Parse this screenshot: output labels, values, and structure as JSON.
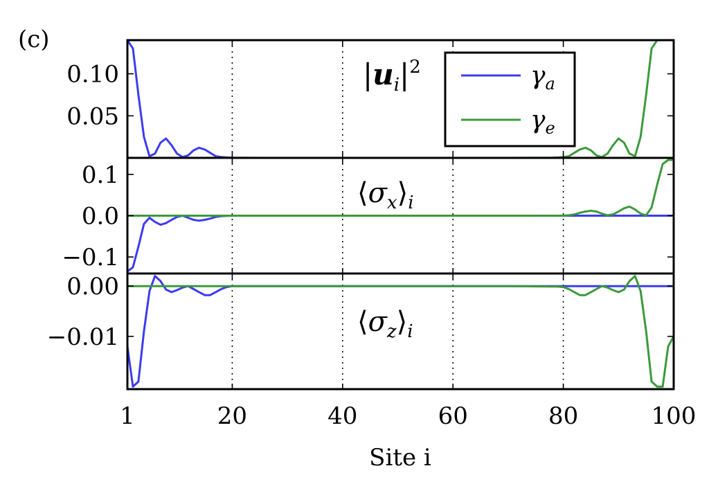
{
  "figure_label": "(c)",
  "colors": {
    "series_a": "#3b3bf0",
    "series_e": "#3a9a3a",
    "grid": "#000000",
    "frame": "#000000"
  },
  "legend": {
    "entries": [
      {
        "symbol": "γ",
        "subscript": "a",
        "color": "#3b3bf0"
      },
      {
        "symbol": "γ",
        "subscript": "e",
        "color": "#3a9a3a"
      }
    ],
    "location": "top-right of top panel"
  },
  "chart_data": [
    {
      "type": "line",
      "panel_label": "|ui|²",
      "x": [
        1,
        2,
        3,
        4,
        5,
        6,
        7,
        8,
        9,
        10,
        11,
        12,
        13,
        14,
        15,
        16,
        17,
        18,
        19,
        20,
        22,
        25,
        30,
        40,
        50,
        60,
        70,
        78,
        79,
        80,
        81,
        82,
        83,
        84,
        85,
        86,
        87,
        88,
        89,
        90,
        91,
        92,
        93,
        94,
        95,
        96,
        97,
        98,
        99,
        100
      ],
      "series": [
        {
          "legend_index": 0,
          "values": [
            0.14,
            0.13,
            0.075,
            0.025,
            0.002,
            0.005,
            0.018,
            0.023,
            0.015,
            0.005,
            0.001,
            0.003,
            0.009,
            0.012,
            0.01,
            0.006,
            0.002,
            0.001,
            0.0005,
            0.0002,
            0.0001,
            0,
            0,
            0,
            0,
            0,
            0,
            0,
            0,
            0,
            0,
            0,
            0,
            0,
            0,
            0,
            0,
            0,
            0,
            0,
            0,
            0,
            0,
            0,
            0,
            0,
            0,
            0,
            0,
            0
          ]
        },
        {
          "legend_index": 1,
          "values": [
            0,
            0,
            0,
            0,
            0,
            0,
            0,
            0,
            0,
            0,
            0,
            0,
            0,
            0,
            0,
            0,
            0,
            0,
            0,
            0,
            0,
            0,
            0,
            0,
            0,
            0,
            0,
            0.0002,
            0.0005,
            0.001,
            0.002,
            0.006,
            0.01,
            0.012,
            0.009,
            0.003,
            0.001,
            0.005,
            0.015,
            0.023,
            0.018,
            0.005,
            0.002,
            0.025,
            0.075,
            0.13,
            0.14,
            0.14,
            0.14,
            0.14
          ]
        }
      ],
      "ylim": [
        0,
        0.14
      ],
      "yticks": [
        0.05,
        0.1
      ],
      "ytick_labels": [
        "0.05",
        "0.10"
      ]
    },
    {
      "type": "line",
      "panel_label": "⟨σx⟩i",
      "x": [
        1,
        2,
        3,
        4,
        5,
        6,
        7,
        8,
        9,
        10,
        11,
        12,
        13,
        14,
        15,
        16,
        17,
        18,
        19,
        20,
        25,
        30,
        40,
        50,
        60,
        70,
        80,
        81,
        82,
        83,
        84,
        85,
        86,
        87,
        88,
        89,
        90,
        91,
        92,
        93,
        94,
        95,
        96,
        97,
        98,
        99,
        100
      ],
      "series": [
        {
          "legend_index": 0,
          "values": [
            -0.135,
            -0.125,
            -0.075,
            -0.02,
            -0.005,
            -0.015,
            -0.022,
            -0.018,
            -0.01,
            -0.003,
            0.0,
            -0.005,
            -0.01,
            -0.012,
            -0.01,
            -0.007,
            -0.003,
            -0.001,
            -0.0003,
            0,
            0,
            0,
            0,
            0,
            0,
            0,
            0,
            0,
            0,
            0,
            0,
            0,
            0,
            0,
            0,
            0,
            0,
            0,
            0,
            0,
            0,
            0,
            0,
            0,
            0,
            0,
            0
          ]
        },
        {
          "legend_index": 1,
          "values": [
            0,
            0,
            0,
            0,
            0,
            0,
            0,
            0,
            0,
            0,
            0,
            0,
            0,
            0,
            0,
            0,
            0,
            0,
            0,
            0,
            0,
            0,
            0,
            0,
            0,
            0,
            0.0002,
            0.001,
            0.003,
            0.007,
            0.01,
            0.012,
            0.01,
            0.005,
            0.001,
            0.003,
            0.01,
            0.018,
            0.022,
            0.015,
            0.005,
            0.001,
            0.02,
            0.075,
            0.125,
            0.135,
            0.135
          ]
        }
      ],
      "ylim": [
        -0.14,
        0.14
      ],
      "yticks": [
        -0.1,
        0.0,
        0.1
      ],
      "ytick_labels": [
        "−0.1",
        "0.0",
        "0.1"
      ]
    },
    {
      "type": "line",
      "panel_label": "⟨σz⟩i",
      "x": [
        1,
        2,
        3,
        4,
        5,
        6,
        7,
        8,
        9,
        10,
        11,
        12,
        13,
        14,
        15,
        16,
        17,
        18,
        19,
        20,
        25,
        30,
        40,
        50,
        60,
        70,
        79,
        80,
        81,
        82,
        83,
        84,
        85,
        86,
        87,
        88,
        89,
        90,
        91,
        92,
        93,
        94,
        95,
        96,
        97,
        98,
        99,
        100
      ],
      "series": [
        {
          "legend_index": 0,
          "values": [
            -0.012,
            -0.02,
            -0.019,
            -0.009,
            -0.001,
            0.002,
            0.001,
            -0.0007,
            -0.0012,
            -0.0008,
            -0.0003,
            0.0,
            -0.0006,
            -0.0012,
            -0.0018,
            -0.0018,
            -0.0012,
            -0.0006,
            -0.0002,
            0,
            0,
            0,
            0,
            0,
            0,
            0,
            0,
            0,
            0,
            0,
            0,
            0,
            0,
            0,
            0,
            0,
            0,
            0,
            0,
            0,
            0,
            0,
            0,
            0,
            0,
            0,
            0,
            0
          ]
        },
        {
          "legend_index": 1,
          "values": [
            0,
            0,
            0,
            0,
            0,
            0,
            0,
            0,
            0,
            0,
            0,
            0,
            0,
            0,
            0,
            0,
            0,
            0,
            0,
            0,
            0,
            0,
            0,
            0,
            0,
            0,
            -0.0001,
            -0.0002,
            -0.0006,
            -0.0012,
            -0.0018,
            -0.0018,
            -0.0012,
            -0.0006,
            0.0,
            -0.0003,
            -0.0008,
            -0.0012,
            -0.0007,
            0.001,
            0.002,
            -0.001,
            -0.009,
            -0.019,
            -0.02,
            -0.02,
            -0.012,
            -0.01
          ]
        }
      ],
      "ylim": [
        -0.0205,
        0.0025
      ],
      "yticks": [
        -0.01,
        0.0
      ],
      "ytick_labels": [
        "−0.01",
        "0.00"
      ]
    }
  ],
  "x_axis": {
    "label": "Site i",
    "range": [
      1,
      100
    ],
    "ticks": [
      1,
      20,
      40,
      60,
      80,
      100
    ],
    "tick_labels": [
      "1",
      "20",
      "40",
      "60",
      "80",
      "100"
    ],
    "vertical_gridlines": [
      20,
      40,
      60,
      80
    ]
  }
}
